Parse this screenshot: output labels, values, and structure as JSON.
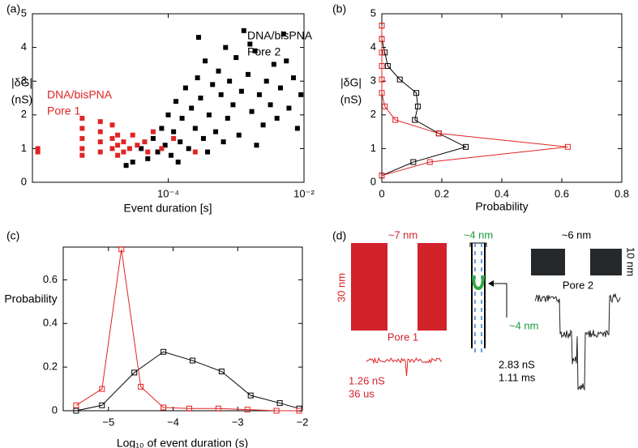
{
  "chart_data": [
    {
      "type": "scatter",
      "panel": "(a)",
      "xlabel": "Event duration [s]",
      "ylabel": [
        "|δG|",
        "(nS)"
      ],
      "xscale": "log",
      "xlim": [
        1e-06,
        0.01
      ],
      "xticks": [
        {
          "value": 0.0001,
          "label": "10⁻⁴"
        },
        {
          "value": 0.01,
          "label": "10⁻²"
        }
      ],
      "ylim": [
        0,
        5
      ],
      "yticks": [
        0,
        1,
        2,
        3,
        4,
        5
      ],
      "series": [
        {
          "name": [
            "DNA/bisPNA",
            "Pore 2"
          ],
          "color": "#000000",
          "x": [
            3e-05,
            4e-05,
            5e-05,
            6e-05,
            7e-05,
            8e-05,
            9e-05,
            0.0001,
            0.00011,
            0.00012,
            0.00013,
            0.00015,
            0.00016,
            0.00018,
            0.0002,
            0.00022,
            0.00025,
            0.00027,
            0.0003,
            0.00033,
            0.00035,
            0.0004,
            0.00045,
            0.0005,
            0.00055,
            0.0006,
            0.0007,
            0.00075,
            0.0008,
            0.0009,
            0.001,
            0.0011,
            0.0012,
            0.0013,
            0.0015,
            0.0017,
            0.0019,
            0.0022,
            0.0025,
            0.0028,
            0.0032,
            0.0036,
            0.004,
            0.0045,
            0.005,
            0.006,
            0.007,
            0.008,
            0.009,
            2.4e-05,
            0.00014,
            0.00038,
            0.00065,
            0.00028,
            0.0016,
            0.0055,
            0.002
          ],
          "values": [
            0.6,
            1.0,
            0.7,
            1.3,
            0.9,
            1.6,
            1.1,
            2.0,
            0.8,
            1.5,
            2.4,
            1.2,
            1.9,
            2.8,
            1.0,
            2.2,
            1.6,
            3.1,
            2.5,
            1.3,
            3.6,
            2.0,
            2.9,
            1.5,
            3.3,
            2.6,
            4.0,
            1.9,
            3.0,
            2.3,
            3.7,
            1.4,
            2.7,
            4.5,
            3.2,
            2.1,
            3.9,
            2.6,
            1.7,
            3.0,
            2.3,
            3.5,
            1.9,
            2.8,
            4.4,
            2.2,
            3.1,
            1.6,
            2.6,
            0.5,
            0.6,
            0.9,
            1.2,
            4.3,
            4.1,
            3.6,
            1.1
          ]
        },
        {
          "name": [
            "DNA/bisPNA",
            "Pore 1"
          ],
          "color": "#e02424",
          "x": [
            1.2e-06,
            1.2e-06,
            5.4e-06,
            5.4e-06,
            5.4e-06,
            5.4e-06,
            5.4e-06,
            1e-05,
            1e-05,
            1e-05,
            1e-05,
            1.5e-05,
            1.5e-05,
            1.5e-05,
            1.8e-05,
            1.8e-05,
            1.8e-05,
            2.2e-05,
            2.2e-05,
            2.7e-05,
            3e-05,
            3.5e-05,
            4.5e-05,
            6e-05,
            8e-05,
            5e-05,
            0.00012,
            0.00025
          ],
          "values": [
            1.0,
            0.9,
            1.9,
            1.6,
            1.3,
            1.0,
            0.8,
            1.8,
            1.5,
            1.2,
            0.9,
            1.7,
            1.3,
            1.0,
            1.4,
            1.1,
            0.8,
            1.2,
            0.9,
            1.0,
            1.4,
            1.1,
            1.2,
            1.5,
            1.0,
            0.9,
            1.3,
            0.9
          ]
        }
      ]
    },
    {
      "type": "line",
      "orientation": "horizontal",
      "panel": "(b)",
      "xlabel": "Probability",
      "ylabel": [
        "|δG|",
        "(nS)"
      ],
      "xlim": [
        0,
        0.8
      ],
      "xticks": [
        0,
        0.2,
        0.4,
        0.6,
        0.8
      ],
      "ylim": [
        0,
        5
      ],
      "yticks": [
        0,
        1,
        2,
        3,
        4,
        5
      ],
      "y": [
        0.2,
        0.6,
        1.05,
        1.45,
        1.85,
        2.25,
        2.65,
        3.05,
        3.45,
        3.85,
        4.25,
        4.65
      ],
      "series": [
        {
          "color": "#000000",
          "values": [
            0,
            0.105,
            0.28,
            0.19,
            0.11,
            0.12,
            0.115,
            0.06,
            0.02,
            0.01,
            0,
            0
          ]
        },
        {
          "color": "#e02424",
          "values": [
            0,
            0.16,
            0.62,
            0.19,
            0.045,
            0.01,
            0,
            0,
            0,
            0,
            0,
            0
          ]
        }
      ]
    },
    {
      "type": "line",
      "panel": "(c)",
      "xlabel": "Log₁₀ of event duration (s)",
      "ylabel": "Probability",
      "xlim": [
        -5.7,
        -2
      ],
      "xticks": [
        {
          "value": -5,
          "label": "−5"
        },
        {
          "value": -4,
          "label": "−4"
        },
        {
          "value": -3,
          "label": "−3"
        },
        {
          "value": -2,
          "label": "−2"
        }
      ],
      "ylim": [
        0,
        0.75
      ],
      "yticks": [
        0,
        0.2,
        0.4,
        0.6
      ],
      "series": [
        {
          "color": "#000000",
          "x": [
            -5.5,
            -5.1,
            -4.6,
            -4.15,
            -3.7,
            -3.25,
            -2.8,
            -2.35,
            -2.05
          ],
          "values": [
            0,
            0.025,
            0.175,
            0.27,
            0.23,
            0.18,
            0.07,
            0.035,
            0.01
          ]
        },
        {
          "color": "#e02424",
          "x": [
            -5.5,
            -5.1,
            -4.8,
            -4.5,
            -4.15,
            -3.75,
            -3.3,
            -2.85,
            -2.4,
            -2.05
          ],
          "values": [
            0.025,
            0.1,
            0.74,
            0.11,
            0.015,
            0.01,
            0.01,
            0.005,
            0,
            0
          ]
        }
      ]
    }
  ],
  "diagram": {
    "panel": "(d)",
    "pore1": {
      "width": "~7 nm",
      "height": "30 nm",
      "label": "Pore 1",
      "conductance": "1.26 nS",
      "duration": "36 us"
    },
    "dna": {
      "width": "~4 nm",
      "bend": "~4 nm"
    },
    "pore2": {
      "width": "~6 nm",
      "height": "10 nm",
      "label": "Pore 2",
      "conductance": "2.83 nS",
      "duration": "1.11 ms"
    }
  }
}
